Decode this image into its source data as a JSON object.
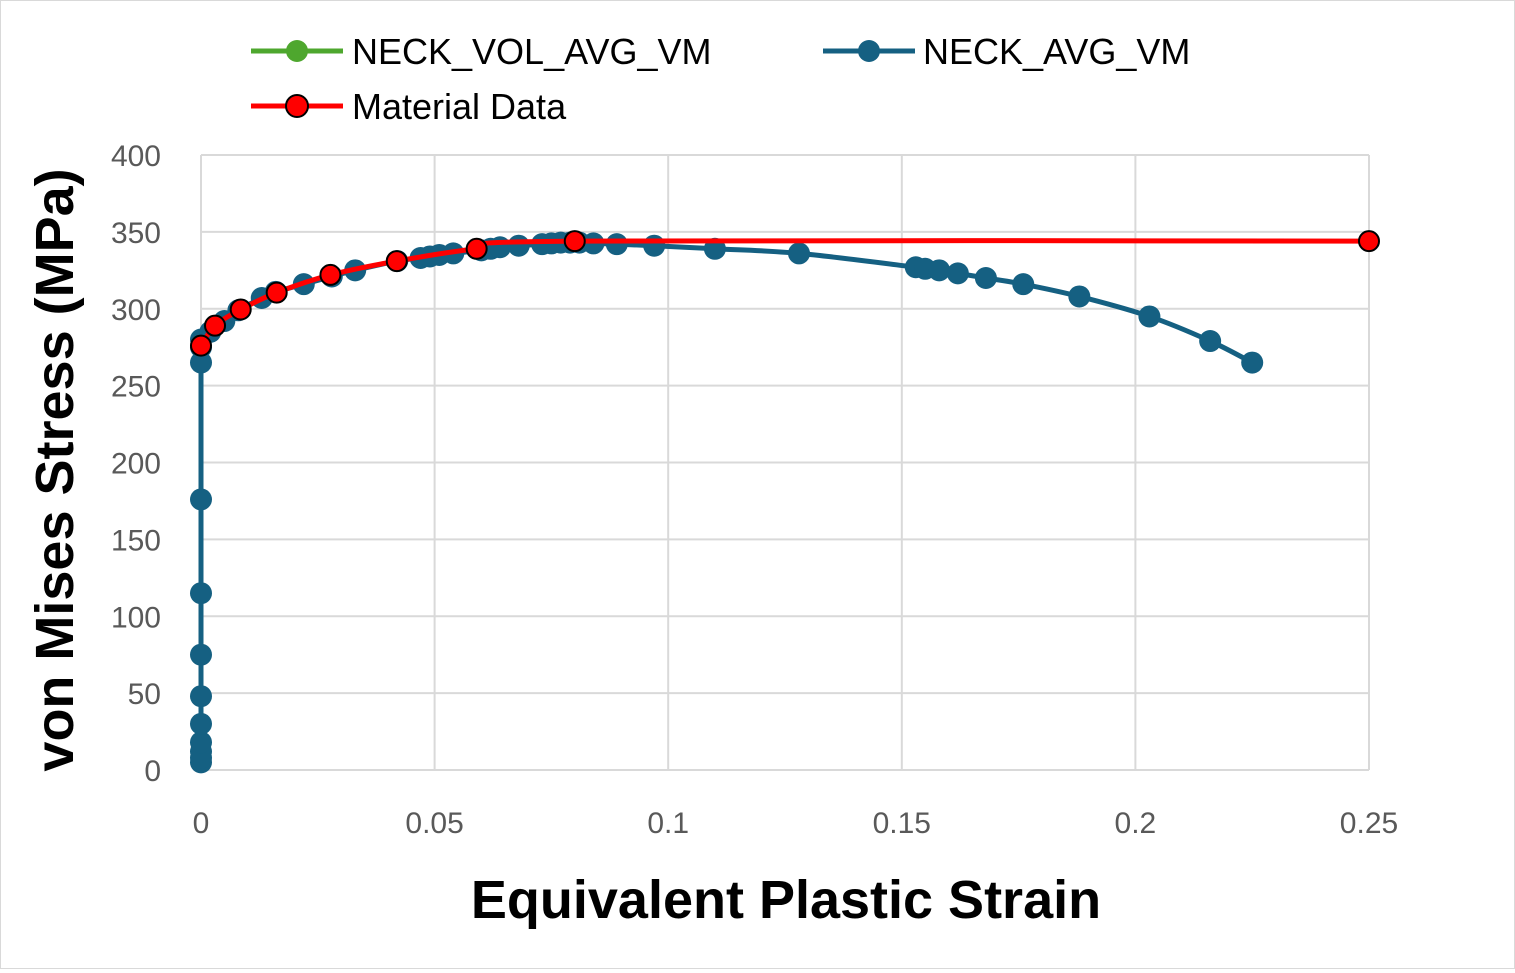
{
  "chart_data": {
    "type": "scatter",
    "xlabel": "Equivalent Plastic Strain",
    "ylabel": "von Mises Stress (MPa)",
    "xlim": [
      0,
      0.25
    ],
    "ylim": [
      0,
      400
    ],
    "xticks": [
      0,
      0.05,
      0.1,
      0.15,
      0.2,
      0.25
    ],
    "xtick_labels": [
      "0",
      "0.05",
      "0.1",
      "0.15",
      "0.2",
      "0.25"
    ],
    "yticks": [
      0,
      50,
      100,
      150,
      200,
      250,
      300,
      350,
      400
    ],
    "ytick_labels": [
      "0",
      "50",
      "100",
      "150",
      "200",
      "250",
      "300",
      "350",
      "400"
    ],
    "grid": true,
    "legend_position": "top",
    "series": [
      {
        "name": "NECK_VOL_AVG_VM",
        "color": "#4ea72e",
        "marker": "circle",
        "x": [],
        "y": []
      },
      {
        "name": "NECK_AVG_VM",
        "color": "#156082",
        "marker": "circle",
        "x": [
          0,
          0,
          0,
          0,
          0,
          0,
          0,
          0,
          0,
          0,
          0,
          0,
          0.002,
          0.005,
          0.008,
          0.013,
          0.016,
          0.022,
          0.028,
          0.033,
          0.042,
          0.047,
          0.049,
          0.051,
          0.054,
          0.06,
          0.062,
          0.064,
          0.068,
          0.073,
          0.075,
          0.077,
          0.079,
          0.081,
          0.084,
          0.089,
          0.097,
          0.11,
          0.128,
          0.153,
          0.155,
          0.158,
          0.162,
          0.168,
          0.176,
          0.188,
          0.203,
          0.216,
          0.225
        ],
        "y": [
          5,
          8,
          12,
          18,
          30,
          48,
          75,
          115,
          176,
          265,
          275,
          280,
          285,
          292,
          299,
          307,
          311,
          316,
          321,
          325,
          331,
          333,
          334,
          335,
          336,
          338,
          339,
          340,
          341,
          342,
          342.5,
          343,
          343,
          343,
          342.5,
          342,
          341,
          339,
          336,
          327,
          326,
          325,
          323,
          320,
          316,
          308,
          295,
          279,
          265
        ]
      },
      {
        "name": "Material Data",
        "color": "#ff0000",
        "marker": "circle",
        "x": [
          0,
          0.003,
          0.0085,
          0.0162,
          0.0277,
          0.0419,
          0.059,
          0.08,
          0.25
        ],
        "y": [
          276,
          289,
          299.5,
          310.5,
          322,
          331,
          339,
          344,
          344
        ]
      }
    ]
  }
}
